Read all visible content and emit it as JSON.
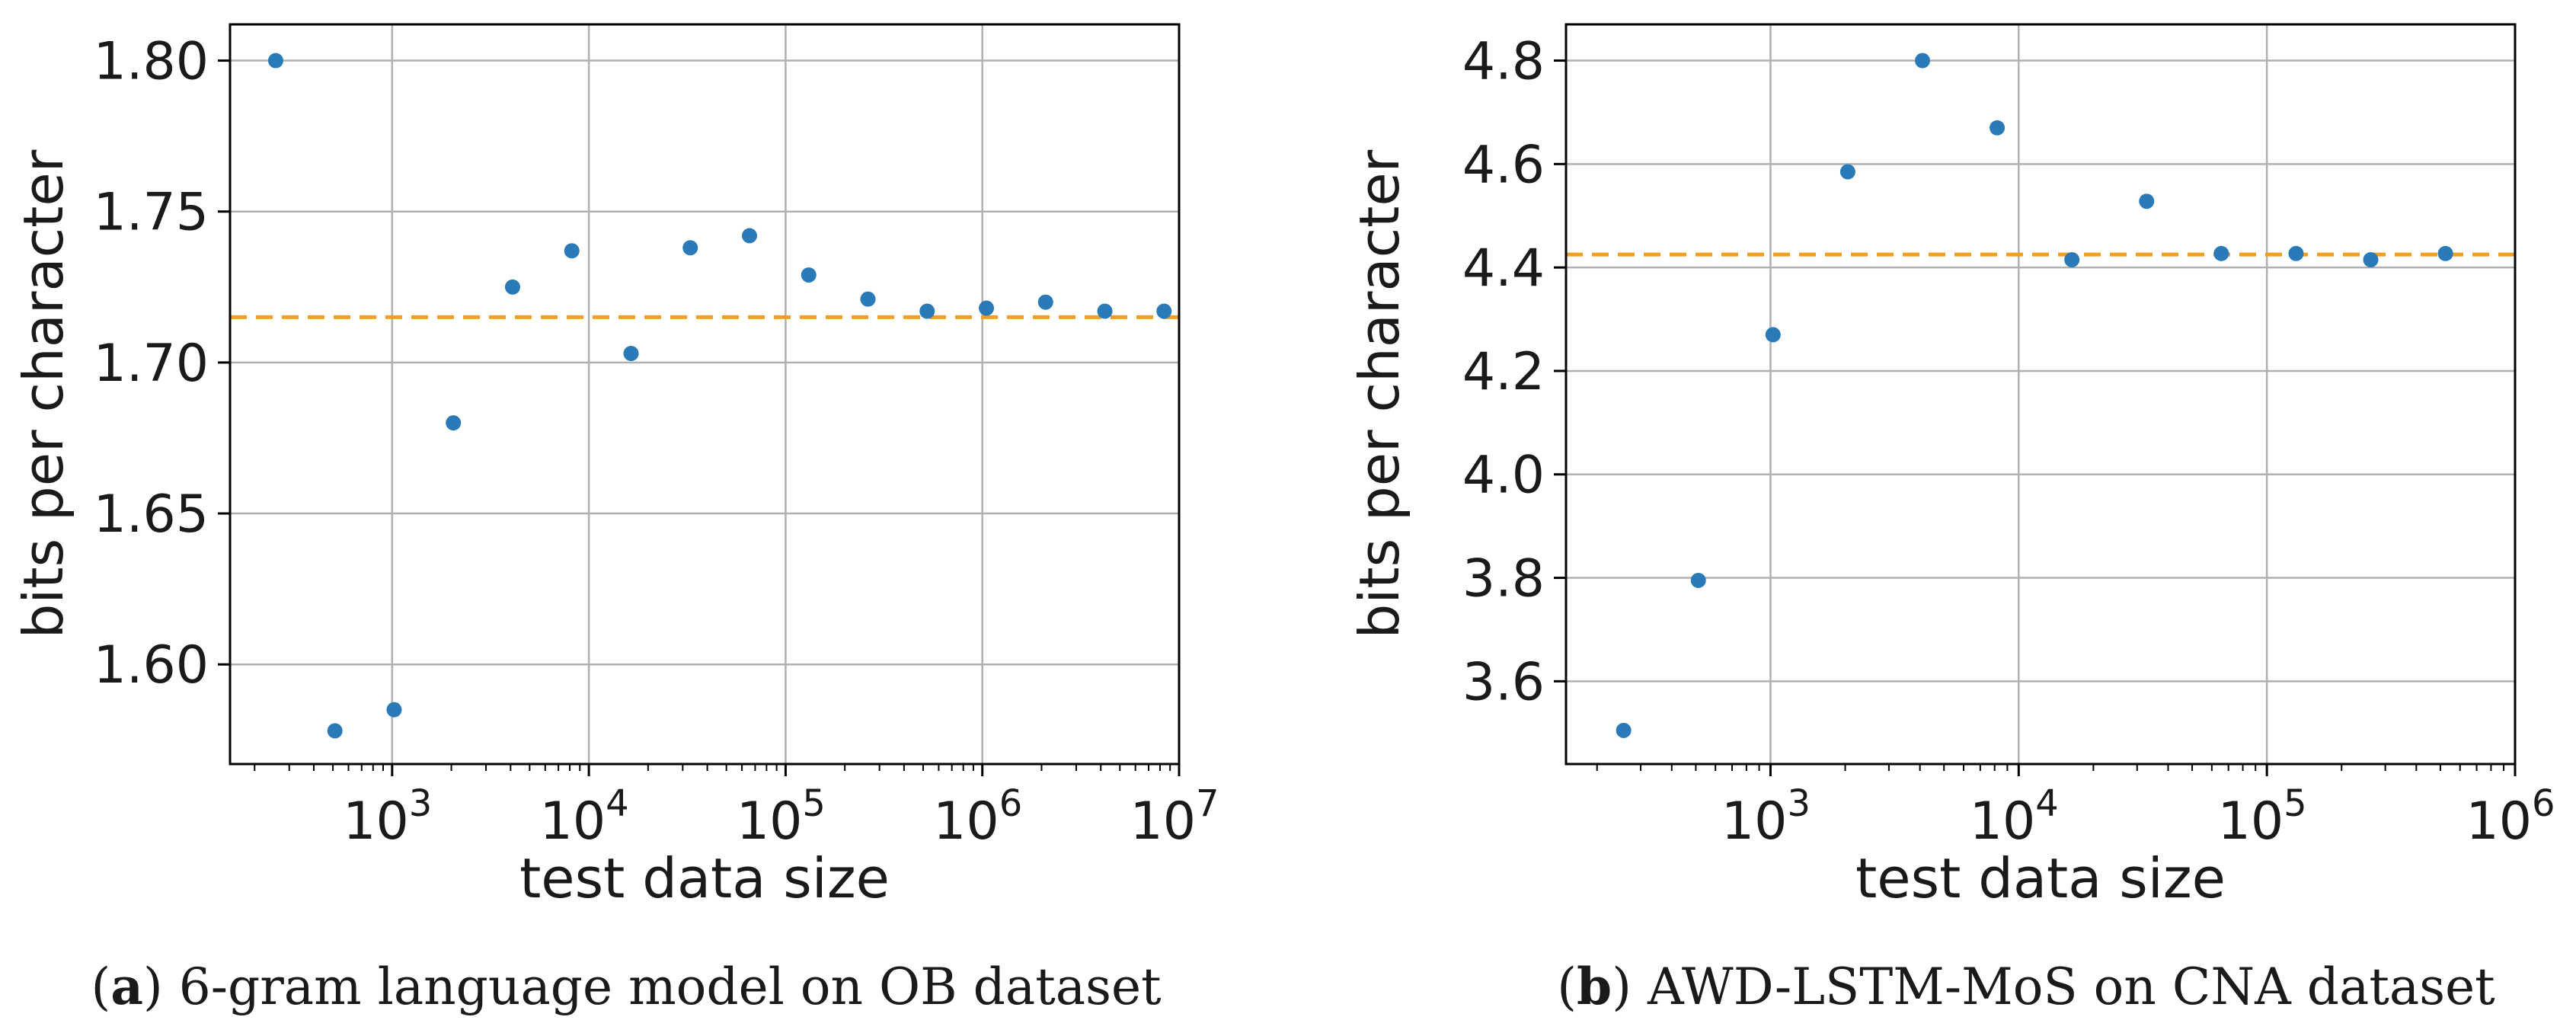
{
  "chart_data": [
    {
      "type": "scatter",
      "id": "a",
      "xscale": "log",
      "xlabel": "test data size",
      "ylabel": "bits per character",
      "xlim": [
        150,
        10000000
      ],
      "ylim": [
        1.567,
        1.812
      ],
      "xticks": [
        {
          "value": 1000,
          "base": "10",
          "exp": "3"
        },
        {
          "value": 10000,
          "base": "10",
          "exp": "4"
        },
        {
          "value": 100000,
          "base": "10",
          "exp": "5"
        },
        {
          "value": 1000000,
          "base": "10",
          "exp": "6"
        },
        {
          "value": 10000000,
          "base": "10",
          "exp": "7"
        }
      ],
      "yticks": [
        {
          "value": 1.6,
          "label": "1.60"
        },
        {
          "value": 1.65,
          "label": "1.65"
        },
        {
          "value": 1.7,
          "label": "1.70"
        },
        {
          "value": 1.75,
          "label": "1.75"
        },
        {
          "value": 1.8,
          "label": "1.80"
        }
      ],
      "grid": true,
      "reference_line": {
        "y": 1.715,
        "color": "#f0a020",
        "style": "dashed"
      },
      "marker_color": "#2a7ab8",
      "points": [
        {
          "x": 256,
          "y": 1.8
        },
        {
          "x": 512,
          "y": 1.578
        },
        {
          "x": 1024,
          "y": 1.585
        },
        {
          "x": 2048,
          "y": 1.68
        },
        {
          "x": 4096,
          "y": 1.725
        },
        {
          "x": 8192,
          "y": 1.737
        },
        {
          "x": 16384,
          "y": 1.703
        },
        {
          "x": 32768,
          "y": 1.738
        },
        {
          "x": 65536,
          "y": 1.742
        },
        {
          "x": 131072,
          "y": 1.729
        },
        {
          "x": 262144,
          "y": 1.721
        },
        {
          "x": 524288,
          "y": 1.717
        },
        {
          "x": 1048576,
          "y": 1.718
        },
        {
          "x": 2097152,
          "y": 1.72
        },
        {
          "x": 4194304,
          "y": 1.717
        },
        {
          "x": 8388608,
          "y": 1.717
        }
      ],
      "caption_letter": "a",
      "caption_text": "6-gram language model on OB dataset"
    },
    {
      "type": "scatter",
      "id": "b",
      "xscale": "log",
      "xlabel": "test data size",
      "ylabel": "bits per character",
      "xlim": [
        150,
        1000000
      ],
      "ylim": [
        3.44,
        4.87
      ],
      "xticks": [
        {
          "value": 1000,
          "base": "10",
          "exp": "3"
        },
        {
          "value": 10000,
          "base": "10",
          "exp": "4"
        },
        {
          "value": 100000,
          "base": "10",
          "exp": "5"
        },
        {
          "value": 1000000,
          "base": "10",
          "exp": "6"
        }
      ],
      "yticks": [
        {
          "value": 3.6,
          "label": "3.6"
        },
        {
          "value": 3.8,
          "label": "3.8"
        },
        {
          "value": 4.0,
          "label": "4.0"
        },
        {
          "value": 4.2,
          "label": "4.2"
        },
        {
          "value": 4.4,
          "label": "4.4"
        },
        {
          "value": 4.6,
          "label": "4.6"
        },
        {
          "value": 4.8,
          "label": "4.8"
        }
      ],
      "grid": true,
      "reference_line": {
        "y": 4.425,
        "color": "#f0a020",
        "style": "dashed"
      },
      "marker_color": "#2a7ab8",
      "points": [
        {
          "x": 256,
          "y": 3.505
        },
        {
          "x": 512,
          "y": 3.795
        },
        {
          "x": 1024,
          "y": 4.27
        },
        {
          "x": 2048,
          "y": 4.585
        },
        {
          "x": 4096,
          "y": 4.8
        },
        {
          "x": 8192,
          "y": 4.67
        },
        {
          "x": 16384,
          "y": 4.415
        },
        {
          "x": 32768,
          "y": 4.528
        },
        {
          "x": 65536,
          "y": 4.427
        },
        {
          "x": 131072,
          "y": 4.427
        },
        {
          "x": 262144,
          "y": 4.415
        },
        {
          "x": 524288,
          "y": 4.427
        }
      ],
      "caption_letter": "b",
      "caption_text": "AWD-LSTM-MoS on CNA dataset"
    }
  ]
}
